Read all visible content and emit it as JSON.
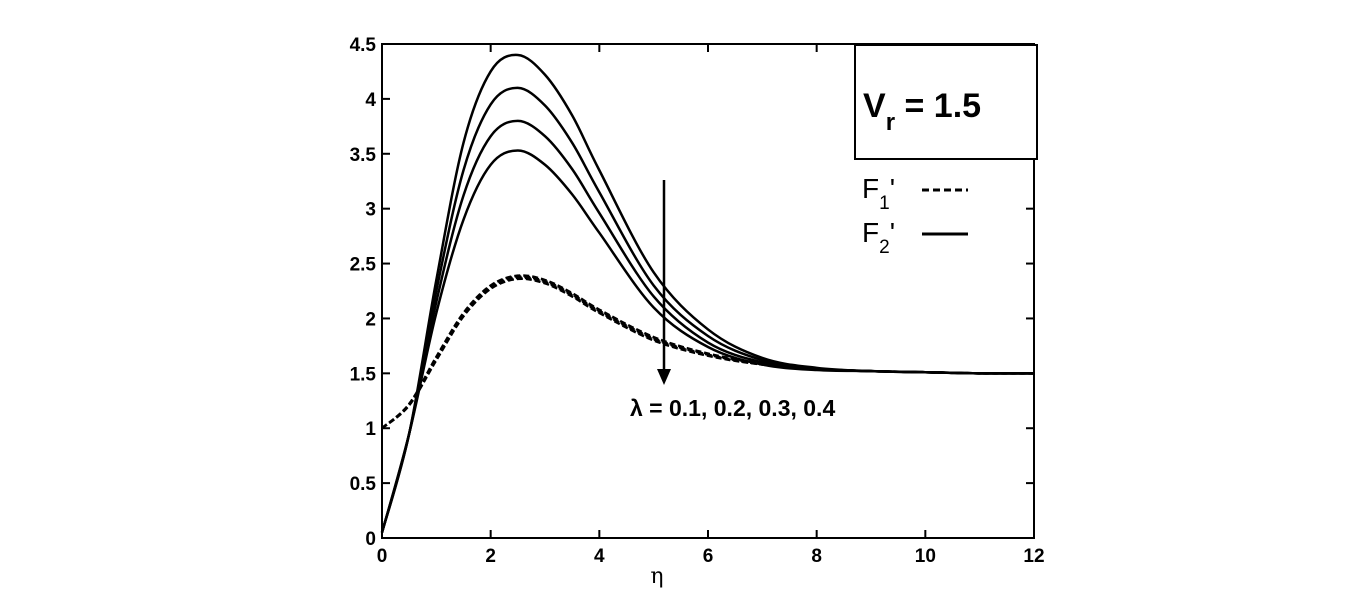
{
  "chart_data": {
    "type": "line",
    "xlabel": "η",
    "ylabel": "",
    "xlim": [
      0,
      12
    ],
    "ylim": [
      0,
      4.5
    ],
    "x_ticks": [
      "0",
      "2",
      "4",
      "6",
      "8",
      "10",
      "12"
    ],
    "y_ticks": [
      "0",
      "0.5",
      "1",
      "1.5",
      "2",
      "2.5",
      "3",
      "3.5",
      "4",
      "4.5"
    ],
    "grid": false,
    "legend_position": "top-right",
    "info_box": {
      "main": "V",
      "sub": "r",
      "tail": " = 1.5"
    },
    "legend": [
      {
        "main": "F",
        "sub": "1",
        "tail": "'",
        "style": "dashed"
      },
      {
        "main": "F",
        "sub": "2",
        "tail": "'",
        "style": "solid"
      }
    ],
    "annotation": "λ = 0.1, 0.2, 0.3, 0.4",
    "series": [
      {
        "group": "F1'",
        "lambda": 0.1,
        "style": "dashed",
        "x": [
          0,
          0.5,
          1,
          1.5,
          2,
          2.5,
          3,
          3.5,
          4,
          5,
          6,
          7,
          8,
          9,
          10,
          11,
          12
        ],
        "y": [
          1.0,
          1.22,
          1.65,
          2.05,
          2.3,
          2.39,
          2.35,
          2.23,
          2.08,
          1.83,
          1.68,
          1.59,
          1.54,
          1.52,
          1.51,
          1.5,
          1.5
        ]
      },
      {
        "group": "F1'",
        "lambda": 0.2,
        "style": "dashed",
        "x": [
          0,
          0.5,
          1,
          1.5,
          2,
          2.5,
          3,
          3.5,
          4,
          5,
          6,
          7,
          8,
          9,
          10,
          11,
          12
        ],
        "y": [
          1.0,
          1.22,
          1.64,
          2.04,
          2.29,
          2.38,
          2.34,
          2.22,
          2.07,
          1.82,
          1.67,
          1.59,
          1.54,
          1.52,
          1.51,
          1.5,
          1.5
        ]
      },
      {
        "group": "F1'",
        "lambda": 0.3,
        "style": "dashed",
        "x": [
          0,
          0.5,
          1,
          1.5,
          2,
          2.5,
          3,
          3.5,
          4,
          5,
          6,
          7,
          8,
          9,
          10,
          11,
          12
        ],
        "y": [
          1.0,
          1.21,
          1.63,
          2.03,
          2.28,
          2.37,
          2.33,
          2.21,
          2.06,
          1.81,
          1.67,
          1.58,
          1.54,
          1.52,
          1.51,
          1.5,
          1.5
        ]
      },
      {
        "group": "F1'",
        "lambda": 0.4,
        "style": "dashed",
        "x": [
          0,
          0.5,
          1,
          1.5,
          2,
          2.5,
          3,
          3.5,
          4,
          5,
          6,
          7,
          8,
          9,
          10,
          11,
          12
        ],
        "y": [
          1.0,
          1.21,
          1.62,
          2.02,
          2.27,
          2.36,
          2.32,
          2.2,
          2.05,
          1.8,
          1.66,
          1.58,
          1.54,
          1.52,
          1.51,
          1.5,
          1.5
        ]
      },
      {
        "group": "F2'",
        "lambda": 0.1,
        "style": "solid",
        "x": [
          0,
          0.5,
          1,
          1.5,
          2,
          2.5,
          3,
          3.5,
          4,
          5,
          6,
          7,
          8,
          9,
          10,
          11,
          12
        ],
        "y": [
          0.05,
          0.95,
          2.35,
          3.6,
          4.25,
          4.4,
          4.22,
          3.85,
          3.35,
          2.42,
          1.9,
          1.64,
          1.55,
          1.52,
          1.51,
          1.5,
          1.5
        ]
      },
      {
        "group": "F2'",
        "lambda": 0.2,
        "style": "solid",
        "x": [
          0,
          0.5,
          1,
          1.5,
          2,
          2.5,
          3,
          3.5,
          4,
          5,
          6,
          7,
          8,
          9,
          10,
          11,
          12
        ],
        "y": [
          0.05,
          0.95,
          2.25,
          3.35,
          3.95,
          4.1,
          3.94,
          3.6,
          3.15,
          2.3,
          1.84,
          1.62,
          1.54,
          1.52,
          1.51,
          1.5,
          1.5
        ]
      },
      {
        "group": "F2'",
        "lambda": 0.3,
        "style": "solid",
        "x": [
          0,
          0.5,
          1,
          1.5,
          2,
          2.5,
          3,
          3.5,
          4,
          5,
          6,
          7,
          8,
          9,
          10,
          11,
          12
        ],
        "y": [
          0.05,
          0.95,
          2.15,
          3.12,
          3.66,
          3.8,
          3.66,
          3.36,
          2.96,
          2.2,
          1.78,
          1.6,
          1.54,
          1.52,
          1.51,
          1.5,
          1.5
        ]
      },
      {
        "group": "F2'",
        "lambda": 0.4,
        "style": "solid",
        "x": [
          0,
          0.5,
          1,
          1.5,
          2,
          2.5,
          3,
          3.5,
          4,
          5,
          6,
          7,
          8,
          9,
          10,
          11,
          12
        ],
        "y": [
          0.05,
          0.95,
          2.05,
          2.9,
          3.4,
          3.53,
          3.4,
          3.13,
          2.78,
          2.1,
          1.74,
          1.58,
          1.53,
          1.52,
          1.51,
          1.5,
          1.5
        ]
      }
    ]
  }
}
